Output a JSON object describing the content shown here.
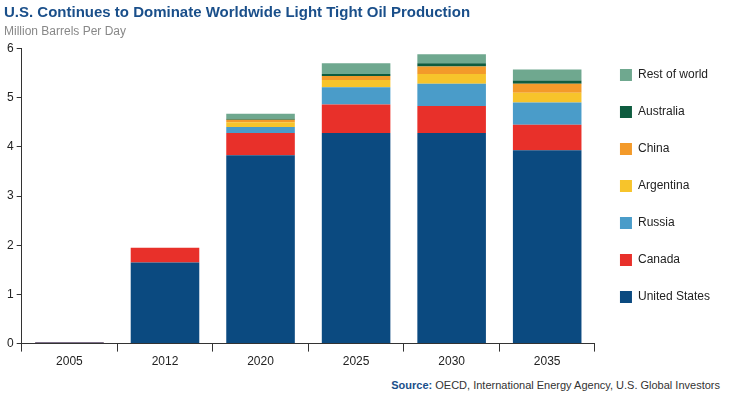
{
  "chart_data": {
    "type": "bar",
    "title": "U.S. Continues to Dominate Worldwide Light Tight Oil Production",
    "subtitle": "Million Barrels Per Day",
    "source": "Source: OECD, International Energy Agency, U.S. Global Investors",
    "categories": [
      "2005",
      "2012",
      "2020",
      "2025",
      "2030",
      "2035"
    ],
    "stacked": true,
    "grid": false,
    "legend": "right",
    "ylim": [
      0,
      6
    ],
    "yticks": [
      0,
      1,
      2,
      3,
      4,
      5,
      6
    ],
    "series": [
      {
        "name": "United States",
        "color": "#0b4a80",
        "values": [
          0.02,
          1.65,
          3.83,
          4.28,
          4.28,
          3.93
        ]
      },
      {
        "name": "Canada",
        "color": "#e8302a",
        "values": [
          0.01,
          0.3,
          0.45,
          0.58,
          0.55,
          0.52
        ]
      },
      {
        "name": "Russia",
        "color": "#4a9cc9",
        "values": [
          0,
          0,
          0.12,
          0.35,
          0.45,
          0.45
        ]
      },
      {
        "name": "Argentina",
        "color": "#f7c42b",
        "values": [
          0,
          0,
          0.1,
          0.15,
          0.2,
          0.2
        ]
      },
      {
        "name": "China",
        "color": "#f39a2a",
        "values": [
          0,
          0,
          0.05,
          0.08,
          0.15,
          0.18
        ]
      },
      {
        "name": "Australia",
        "color": "#0e5c3f",
        "values": [
          0,
          0,
          0.02,
          0.04,
          0.07,
          0.07
        ]
      },
      {
        "name": "Rest of world",
        "color": "#6fa88f",
        "values": [
          0,
          0,
          0.1,
          0.22,
          0.18,
          0.22
        ]
      }
    ]
  }
}
